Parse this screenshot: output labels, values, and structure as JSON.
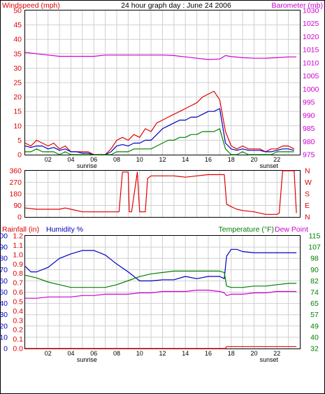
{
  "colors": {
    "red": "#e00000",
    "blue": "#0000c0",
    "green": "#008000",
    "magenta": "#d000d0",
    "grid": "#cfcfcf",
    "axis": "#000000"
  },
  "chart_data": [
    {
      "type": "line",
      "title": "24 hour graph day : June 24 2006",
      "left_label": "Windspeed (mph)",
      "right_label": "Barometer (mb)",
      "x_ticks": [
        "02",
        "04",
        "06",
        "08",
        "10",
        "12",
        "14",
        "16",
        "18",
        "20",
        "22"
      ],
      "sunrise_label": "sunrise",
      "sunset_label": "sunset",
      "y_left_ticks": [
        "0",
        "5",
        "10",
        "15",
        "20",
        "25",
        "30",
        "35",
        "40",
        "45",
        "50"
      ],
      "y_right_ticks": [
        "975",
        "980",
        "985",
        "990",
        "995",
        "1000",
        "1005",
        "1010",
        "1015",
        "1020",
        "1025",
        "1030"
      ],
      "ylim_left": [
        0,
        50
      ],
      "ylim_right": [
        975,
        1030
      ],
      "xlim": [
        0,
        24
      ],
      "sunrise_hour": 5.4,
      "sunset_hour": 21.3,
      "grid": true,
      "series": [
        {
          "color": "red",
          "axis": "left",
          "x": [
            0,
            0.5,
            1,
            1.5,
            2,
            2.5,
            3,
            3.5,
            4,
            4.5,
            5,
            5.5,
            6,
            6.5,
            7,
            7.5,
            8,
            8.5,
            9,
            9.5,
            10,
            10.5,
            11,
            11.5,
            12,
            12.5,
            13,
            13.5,
            14,
            14.5,
            15,
            15.5,
            16,
            16.5,
            17,
            17.5,
            18,
            18.5,
            19,
            19.5,
            20,
            20.5,
            21,
            21.5,
            22,
            22.5,
            23,
            23.5
          ],
          "values": [
            4,
            3,
            5,
            4,
            3,
            4,
            2,
            3,
            1,
            1,
            1,
            1,
            0,
            0,
            0,
            2,
            5,
            6,
            5,
            7,
            6,
            9,
            8,
            11,
            12,
            13,
            14,
            15,
            16,
            17,
            18,
            20,
            21,
            22,
            19,
            8,
            3,
            2,
            3,
            2,
            2,
            2,
            1,
            2,
            2,
            3,
            3,
            2
          ]
        },
        {
          "color": "blue",
          "axis": "left",
          "x": [
            0,
            0.5,
            1,
            1.5,
            2,
            2.5,
            3,
            3.5,
            4,
            4.5,
            5,
            5.5,
            6,
            6.5,
            7,
            7.5,
            8,
            8.5,
            9,
            9.5,
            10,
            10.5,
            11,
            11.5,
            12,
            12.5,
            13,
            13.5,
            14,
            14.5,
            15,
            15.5,
            16,
            16.5,
            17,
            17.5,
            18,
            18.5,
            19,
            19.5,
            20,
            20.5,
            21,
            21.5,
            22,
            22.5,
            23,
            23.5
          ],
          "values": [
            3,
            2.5,
            3,
            3,
            2,
            2.5,
            1.5,
            2,
            1,
            1,
            0.5,
            0.5,
            0,
            0,
            0,
            1,
            3,
            3.5,
            3,
            4,
            4,
            5,
            5,
            7,
            9,
            10,
            11,
            12,
            12,
            13,
            13,
            14,
            15,
            15,
            16,
            4,
            2,
            1.5,
            2,
            1.5,
            1.5,
            1.5,
            1,
            1,
            1.5,
            2,
            2,
            1.5
          ]
        },
        {
          "color": "green",
          "axis": "left",
          "x": [
            0,
            0.5,
            1,
            1.5,
            2,
            2.5,
            3,
            3.5,
            4,
            4.5,
            5,
            5.5,
            6,
            6.5,
            7,
            7.5,
            8,
            8.5,
            9,
            9.5,
            10,
            10.5,
            11,
            11.5,
            12,
            12.5,
            13,
            13.5,
            14,
            14.5,
            15,
            15.5,
            16,
            16.5,
            17,
            17.5,
            18,
            18.5,
            19,
            19.5,
            20,
            20.5,
            21,
            21.5,
            22,
            22.5,
            23,
            23.5
          ],
          "values": [
            1,
            1,
            2,
            1,
            1,
            1,
            0,
            1,
            0,
            0,
            0,
            0,
            0,
            0,
            0,
            0,
            1,
            1,
            1,
            2,
            2,
            2,
            2,
            3,
            4,
            5,
            5,
            6,
            6,
            7,
            7,
            8,
            8,
            8,
            9,
            2,
            0,
            0,
            1,
            0,
            0,
            0,
            0,
            0,
            1,
            1,
            1,
            1
          ]
        },
        {
          "color": "magenta",
          "axis": "right",
          "x": [
            0,
            1,
            2,
            3,
            4,
            5,
            6,
            7,
            8,
            9,
            10,
            11,
            12,
            13,
            14,
            15,
            16,
            17,
            17.5,
            18,
            19,
            20,
            21,
            22,
            23,
            23.7
          ],
          "values": [
            1014,
            1013.5,
            1013,
            1012.5,
            1012.5,
            1012.5,
            1012.5,
            1013,
            1013,
            1013,
            1013,
            1013,
            1013,
            1012.8,
            1012.3,
            1011.8,
            1011.3,
            1011.5,
            1012.8,
            1012.4,
            1012,
            1011.8,
            1011.8,
            1012,
            1012.3,
            1012.3
          ]
        }
      ]
    },
    {
      "type": "line",
      "y_left_ticks": [
        "0",
        "90",
        "180",
        "270",
        "360"
      ],
      "y_right_ticks": [
        "N",
        "E",
        "S",
        "W",
        "N"
      ],
      "ylim": [
        0,
        360
      ],
      "xlim": [
        0,
        24
      ],
      "grid": true,
      "series": [
        {
          "color": "red",
          "x": [
            0,
            1,
            2,
            3,
            3.5,
            4,
            5,
            6,
            7,
            7.5,
            8.2,
            8.5,
            9,
            9.1,
            9.3,
            9.8,
            10,
            10.2,
            10.5,
            10.7,
            11,
            12,
            13,
            14,
            15,
            16,
            17,
            17.4,
            17.6,
            18,
            18.5,
            19,
            20,
            21,
            22,
            22.2,
            22.5,
            23,
            23.5,
            23.7
          ],
          "values": [
            70,
            60,
            60,
            60,
            70,
            60,
            40,
            40,
            40,
            40,
            40,
            350,
            350,
            40,
            40,
            350,
            40,
            40,
            40,
            300,
            320,
            320,
            320,
            310,
            320,
            330,
            330,
            330,
            100,
            80,
            60,
            50,
            40,
            20,
            20,
            30,
            360,
            360,
            360,
            30
          ]
        }
      ]
    },
    {
      "type": "line",
      "left_label_1": "Rainfall (in)",
      "left_label_2": "Humidity %",
      "right_label_1": "Temperature (°F)",
      "right_label_2": "Dew Point",
      "y_left_ticks_humidity": [
        "0",
        "10",
        "20",
        "30",
        "40",
        "50",
        "60",
        "70",
        "80",
        "90",
        "100"
      ],
      "y_left_ticks_rain": [
        "0.0",
        "0.1",
        "0.2",
        "0.3",
        "0.4",
        "0.5",
        "0.6",
        "0.7",
        "0.8",
        "0.9",
        "1.0",
        "1.1",
        "1.2"
      ],
      "y_right_ticks": [
        "32",
        "40",
        "49",
        "57",
        "65",
        "74",
        "82",
        "90",
        "98",
        "107",
        "115"
      ],
      "ylim_humidity": [
        0,
        100
      ],
      "ylim_rain": [
        0,
        1.2
      ],
      "ylim_temp": [
        32,
        115
      ],
      "xlim": [
        0,
        24
      ],
      "grid": true,
      "series": [
        {
          "color": "blue",
          "axis": "humidity",
          "x": [
            0,
            0.5,
            1,
            2,
            3,
            4,
            5,
            6,
            6.5,
            7,
            7.5,
            8,
            9,
            10,
            10.5,
            11,
            12,
            13,
            14,
            15,
            16,
            17,
            17.4,
            17.6,
            18,
            18.5,
            19,
            20,
            21,
            22,
            23,
            23.7
          ],
          "values": [
            73,
            68,
            68,
            72,
            80,
            84,
            87,
            87,
            85,
            83,
            79,
            75,
            68,
            60,
            60,
            60,
            61,
            61,
            64,
            62,
            64,
            64,
            62,
            82,
            88,
            88,
            86,
            85,
            85,
            85,
            85,
            85
          ]
        },
        {
          "color": "green",
          "axis": "temp",
          "x": [
            0,
            1,
            2,
            3,
            4,
            5,
            6,
            7,
            8,
            9,
            10,
            11,
            12,
            13,
            14,
            15,
            16,
            17,
            17.4,
            17.6,
            18,
            19,
            20,
            21,
            22,
            23,
            23.7
          ],
          "values": [
            86,
            84,
            81,
            79,
            77,
            77,
            77,
            77,
            79,
            82,
            85,
            87,
            88,
            89,
            89,
            89,
            89,
            89,
            88,
            78,
            77,
            77,
            78,
            78,
            79,
            80,
            80
          ]
        },
        {
          "color": "magenta",
          "axis": "temp",
          "x": [
            0,
            1,
            2,
            3,
            4,
            5,
            6,
            7,
            8,
            9,
            10,
            11,
            12,
            13,
            14,
            15,
            16,
            17,
            17.4,
            17.6,
            18,
            19,
            20,
            21,
            22,
            23,
            23.7
          ],
          "values": [
            69,
            69,
            70,
            70,
            70,
            71,
            71,
            72,
            72,
            72,
            73,
            73,
            74,
            74,
            74,
            75,
            75,
            74,
            73,
            71,
            72,
            72,
            73,
            73,
            74,
            74,
            74
          ]
        },
        {
          "color": "red",
          "axis": "rain",
          "x": [
            0,
            17.5,
            17.6,
            23.7
          ],
          "values": [
            0.0,
            0.0,
            0.02,
            0.02
          ]
        }
      ]
    }
  ]
}
